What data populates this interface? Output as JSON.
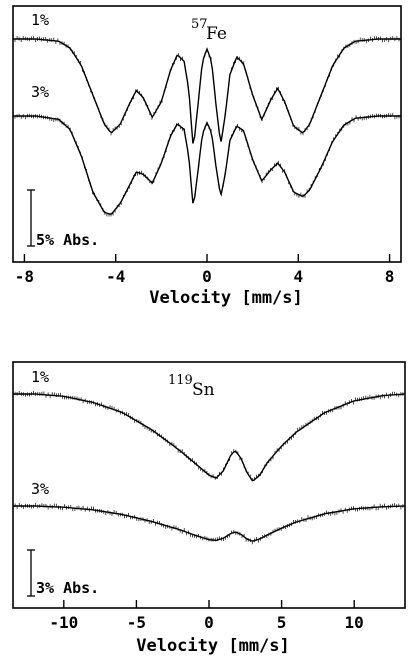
{
  "chart_data": [
    {
      "type": "line",
      "isotope_mass": "57",
      "isotope_symbol": "Fe",
      "xlabel": "Velocity [mm/s]",
      "xlim": [
        -8.5,
        8.5
      ],
      "xticks": [
        -8,
        -4,
        0,
        4,
        8
      ],
      "xtick_labels": [
        "-8",
        "-4",
        "0",
        "4",
        "8"
      ],
      "scale_bar_label": "5% Abs.",
      "scale_bar_percent": 5,
      "grid": false,
      "series": [
        {
          "name": "1%",
          "x": [
            -8.5,
            -7.5,
            -6.5,
            -6.0,
            -5.5,
            -5.0,
            -4.5,
            -4.2,
            -3.8,
            -3.4,
            -3.1,
            -2.8,
            -2.4,
            -2.0,
            -1.6,
            -1.3,
            -1.0,
            -0.8,
            -0.6,
            -0.4,
            -0.2,
            0.0,
            0.2,
            0.4,
            0.6,
            0.8,
            1.0,
            1.3,
            1.6,
            2.0,
            2.4,
            2.8,
            3.1,
            3.4,
            3.8,
            4.2,
            4.5,
            5.0,
            5.5,
            6.0,
            6.5,
            7.5,
            8.5
          ],
          "y": [
            0.0,
            0.0,
            -0.2,
            -0.8,
            -2.4,
            -5.0,
            -7.6,
            -8.4,
            -7.6,
            -5.8,
            -4.6,
            -5.2,
            -7.0,
            -5.6,
            -2.8,
            -1.4,
            -2.0,
            -4.5,
            -9.8,
            -6.0,
            -2.0,
            -0.9,
            -2.0,
            -6.0,
            -9.4,
            -6.8,
            -3.2,
            -1.6,
            -2.2,
            -5.0,
            -7.2,
            -5.4,
            -4.4,
            -5.6,
            -7.8,
            -8.4,
            -7.6,
            -5.0,
            -2.4,
            -0.8,
            -0.2,
            0.0,
            0.0
          ]
        },
        {
          "name": "3%",
          "x": [
            -8.5,
            -7.5,
            -6.5,
            -6.0,
            -5.5,
            -5.0,
            -4.5,
            -4.2,
            -3.8,
            -3.4,
            -3.1,
            -2.8,
            -2.4,
            -2.0,
            -1.6,
            -1.3,
            -1.0,
            -0.8,
            -0.6,
            -0.4,
            -0.2,
            0.0,
            0.2,
            0.4,
            0.6,
            0.8,
            1.0,
            1.3,
            1.6,
            2.0,
            2.4,
            2.8,
            3.1,
            3.4,
            3.8,
            4.2,
            4.5,
            5.0,
            5.5,
            6.0,
            6.5,
            7.5,
            8.5
          ],
          "y": [
            0.0,
            0.0,
            -0.3,
            -1.2,
            -3.6,
            -6.8,
            -8.6,
            -8.8,
            -7.8,
            -6.2,
            -5.0,
            -5.2,
            -6.0,
            -4.2,
            -1.8,
            -0.7,
            -1.2,
            -3.6,
            -8.2,
            -5.0,
            -1.6,
            -0.6,
            -1.5,
            -4.6,
            -7.2,
            -5.2,
            -2.2,
            -0.9,
            -1.3,
            -3.9,
            -5.8,
            -4.8,
            -4.2,
            -5.0,
            -6.8,
            -7.2,
            -6.6,
            -4.6,
            -2.3,
            -0.8,
            -0.2,
            0.0,
            0.0
          ]
        }
      ]
    },
    {
      "type": "line",
      "isotope_mass": "119",
      "isotope_symbol": "Sn",
      "xlabel": "Velocity [mm/s]",
      "xlim": [
        -13.5,
        13.5
      ],
      "xticks": [
        -10,
        -5,
        0,
        5,
        10
      ],
      "xtick_labels": [
        "-10",
        "-5",
        "0",
        "5",
        "10"
      ],
      "scale_bar_label": "3% Abs.",
      "scale_bar_percent": 3,
      "grid": false,
      "series": [
        {
          "name": "1%",
          "x": [
            -13.5,
            -12.0,
            -10.0,
            -8.0,
            -6.0,
            -4.0,
            -2.0,
            -1.0,
            0.0,
            0.5,
            1.0,
            1.5,
            1.8,
            2.2,
            2.6,
            3.0,
            3.5,
            4.0,
            5.0,
            6.0,
            8.0,
            10.0,
            12.0,
            13.5
          ],
          "y": [
            0.0,
            0.0,
            -0.15,
            -0.55,
            -1.2,
            -2.3,
            -3.7,
            -4.5,
            -5.3,
            -5.5,
            -5.0,
            -4.0,
            -3.7,
            -4.2,
            -5.1,
            -5.7,
            -5.3,
            -4.5,
            -3.4,
            -2.5,
            -1.2,
            -0.45,
            -0.1,
            0.0
          ]
        },
        {
          "name": "3%",
          "x": [
            -13.5,
            -12.0,
            -10.0,
            -8.0,
            -6.0,
            -4.0,
            -2.0,
            -1.0,
            0.0,
            0.5,
            1.0,
            1.5,
            1.8,
            2.2,
            2.6,
            3.0,
            3.5,
            4.0,
            5.0,
            6.0,
            8.0,
            10.0,
            12.0,
            13.5
          ],
          "y": [
            0.0,
            0.0,
            -0.08,
            -0.25,
            -0.55,
            -1.0,
            -1.55,
            -1.9,
            -2.2,
            -2.25,
            -2.1,
            -1.8,
            -1.7,
            -1.85,
            -2.15,
            -2.3,
            -2.15,
            -1.9,
            -1.45,
            -1.05,
            -0.5,
            -0.18,
            -0.05,
            0.0
          ]
        }
      ]
    }
  ]
}
